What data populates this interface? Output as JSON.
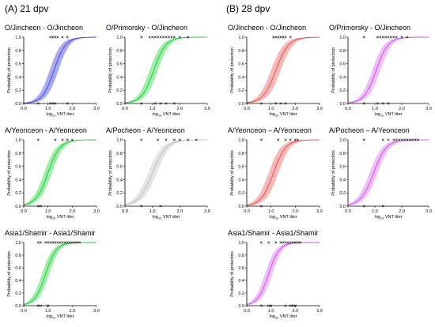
{
  "panels": {
    "left_label": "(A) 21 dpv",
    "right_label": "(B) 28 dpv"
  },
  "axis_text": {
    "ylabel": "Probability of protection",
    "xlabel_prefix": "log",
    "xlabel_sub": "10",
    "xlabel_suffix": " VNT titer"
  },
  "chart_data": [
    {
      "group": "(A) 21 dpv",
      "type": "line",
      "title": "O/Jincheon - O/Jincheon",
      "color": "#3b3bdc",
      "band_color": "#8c8cf0",
      "xlim": [
        0,
        3
      ],
      "ylim": [
        0,
        1
      ],
      "xticks": [
        "0.0",
        "1.0",
        "2.0",
        "3.0"
      ],
      "yticks": [
        "0.0",
        "0.2",
        "0.4",
        "0.6",
        "0.8",
        "1.0"
      ],
      "fit": {
        "ec50": 1.25,
        "slope": 4.2,
        "band": 0.18
      },
      "points_top": [
        1.1,
        1.2,
        1.3,
        1.4,
        1.6,
        1.8
      ],
      "points_bottom": [
        0.6,
        1.1,
        1.2,
        1.3,
        1.8
      ]
    },
    {
      "group": "(A) 21 dpv",
      "type": "line",
      "title": "O/Primorsky - O/Jincheon",
      "color": "#10c830",
      "band_color": "#7ee88e",
      "xlim": [
        0,
        3
      ],
      "ylim": [
        0,
        1
      ],
      "xticks": [
        "0.0",
        "1.0",
        "2.0",
        "3.0"
      ],
      "yticks": [
        "0.0",
        "0.2",
        "0.4",
        "0.6",
        "0.8",
        "1.0"
      ],
      "fit": {
        "ec50": 1.05,
        "slope": 4.5,
        "band": 0.15
      },
      "points_top": [
        0.6,
        0.9,
        1.0,
        1.1,
        1.2,
        1.3,
        1.4,
        1.5,
        1.6,
        1.7,
        1.8,
        2.0,
        2.3
      ],
      "points_bottom": [
        0.6,
        1.1,
        1.3,
        1.5,
        1.8
      ]
    },
    {
      "group": "(A) 21 dpv",
      "type": "line",
      "title": "A/Yeonceon - A/Yeonceon",
      "color": "#10c830",
      "band_color": "#7ee88e",
      "xlim": [
        0,
        3
      ],
      "ylim": [
        0,
        1
      ],
      "xticks": [
        "0.0",
        "1.0",
        "2.0",
        "3.0"
      ],
      "yticks": [
        "0.0",
        "0.2",
        "0.4",
        "0.6",
        "0.8",
        "1.0"
      ],
      "fit": {
        "ec50": 1.0,
        "slope": 4.0,
        "band": 0.16
      },
      "points_top": [
        0.6,
        1.3,
        1.6,
        1.8,
        2.0
      ],
      "points_bottom": [
        0.6,
        0.7
      ]
    },
    {
      "group": "(A) 21 dpv",
      "type": "line",
      "title": "A/Pocheon - A/Yeonceon",
      "color": "#b8b8b8",
      "band_color": "#dcdcdc",
      "xlim": [
        0,
        3
      ],
      "ylim": [
        0,
        1
      ],
      "xticks": [
        "0.0",
        "1.0",
        "2.0",
        "3.0"
      ],
      "yticks": [
        "0.0",
        "0.2",
        "0.4",
        "0.6",
        "0.8",
        "1.0"
      ],
      "fit": {
        "ec50": 1.0,
        "slope": 4.0,
        "band": 0.16
      },
      "points_top": [
        0.6,
        1.2,
        1.5,
        1.8,
        2.0,
        2.3,
        2.6
      ],
      "points_bottom": [
        0.6,
        1.3
      ]
    },
    {
      "group": "(A) 21 dpv",
      "type": "line",
      "title": "Asia1/Shamir - Asia1/Shamir",
      "color": "#10c830",
      "band_color": "#7ee88e",
      "xlim": [
        0,
        3
      ],
      "ylim": [
        0,
        1
      ],
      "xticks": [
        "0.0",
        "1.0",
        "2.0",
        "3.0"
      ],
      "yticks": [
        "0.0",
        "0.2",
        "0.4",
        "0.6",
        "0.8",
        "1.0"
      ],
      "fit": {
        "ec50": 0.9,
        "slope": 4.5,
        "band": 0.15
      },
      "points_top": [
        0.6,
        0.7,
        0.9,
        1.0,
        1.1,
        1.2,
        1.3,
        1.4,
        1.5,
        1.6,
        1.7,
        1.8,
        1.9,
        2.0,
        2.1,
        2.2,
        2.3
      ],
      "points_bottom": [
        0.6,
        0.7,
        1.0
      ]
    },
    {
      "group": "(B) 28 dpv",
      "type": "line",
      "title": "O/Jincheon - O/Jincheon",
      "color": "#e04646",
      "band_color": "#f4a0a0",
      "xlim": [
        0,
        3
      ],
      "ylim": [
        0,
        1
      ],
      "xticks": [
        "0.0",
        "1.0",
        "2.0",
        "3.0"
      ],
      "yticks": [
        "0.0",
        "0.2",
        "0.4",
        "0.6",
        "0.8",
        "1.0"
      ],
      "fit": {
        "ec50": 1.2,
        "slope": 3.8,
        "band": 0.2
      },
      "points_top": [
        1.1,
        1.2,
        1.3,
        1.4,
        1.5,
        1.6,
        1.8
      ],
      "points_bottom": [
        0.6,
        1.2,
        1.4,
        1.6
      ]
    },
    {
      "group": "(B) 28 dpv",
      "type": "line",
      "title": "O/Primorsky - O/Jincheon",
      "color": "#cc44ee",
      "band_color": "#eaa8f8",
      "xlim": [
        0,
        3
      ],
      "ylim": [
        0,
        1
      ],
      "xticks": [
        "0.0",
        "1.0",
        "2.0",
        "3.0"
      ],
      "yticks": [
        "0.0",
        "0.2",
        "0.4",
        "0.6",
        "0.8",
        "1.0"
      ],
      "fit": {
        "ec50": 1.05,
        "slope": 4.5,
        "band": 0.15
      },
      "points_top": [
        0.6,
        1.1,
        1.2,
        1.3,
        1.4,
        1.5,
        1.6,
        1.7,
        1.8,
        2.0,
        2.2
      ],
      "points_bottom": [
        0.6,
        1.1,
        1.3,
        1.5
      ]
    },
    {
      "group": "(B) 28 dpv",
      "type": "line",
      "title": "A/Yeonceon – A/Yeonceon",
      "color": "#e04646",
      "band_color": "#f4a0a0",
      "xlim": [
        0,
        3
      ],
      "ylim": [
        0,
        1
      ],
      "xticks": [
        "0.0",
        "1.0",
        "2.0",
        "3.0"
      ],
      "yticks": [
        "0.0",
        "0.2",
        "0.4",
        "0.6",
        "0.8",
        "1.0"
      ],
      "fit": {
        "ec50": 1.1,
        "slope": 4.0,
        "band": 0.2
      },
      "points_top": [
        0.6,
        1.3,
        1.6,
        1.8,
        2.0,
        2.1
      ],
      "points_bottom": [
        0.6
      ]
    },
    {
      "group": "(B) 28 dpv",
      "type": "line",
      "title": "A/Pocheon – A/Yeonceon",
      "color": "#cc44ee",
      "band_color": "#eaa8f8",
      "xlim": [
        0,
        3
      ],
      "ylim": [
        0,
        1
      ],
      "xticks": [
        "0.0",
        "1.0",
        "2.0",
        "3.0"
      ],
      "yticks": [
        "0.0",
        "0.2",
        "0.4",
        "0.6",
        "0.8",
        "1.0"
      ],
      "fit": {
        "ec50": 0.95,
        "slope": 4.2,
        "band": 0.15
      },
      "points_top": [
        0.6,
        1.3,
        1.5,
        1.7,
        1.8,
        1.9,
        2.0,
        2.1,
        2.2,
        2.3,
        2.4,
        2.5,
        2.6
      ],
      "points_bottom": [
        0.6,
        1.3
      ]
    },
    {
      "group": "(B) 28 dpv",
      "type": "line",
      "title": "Asia1/Shamir - Asia1/Shamir",
      "color": "#cc44ee",
      "band_color": "#eaa8f8",
      "xlim": [
        0,
        3
      ],
      "ylim": [
        0,
        1
      ],
      "xticks": [
        "0.0",
        "1.0",
        "2.0",
        "3.0"
      ],
      "yticks": [
        "0.0",
        "0.2",
        "0.4",
        "0.6",
        "0.8",
        "1.0"
      ],
      "fit": {
        "ec50": 0.9,
        "slope": 4.5,
        "band": 0.15
      },
      "points_top": [
        0.6,
        0.9,
        1.2,
        1.4,
        1.5,
        1.6,
        1.7,
        1.8,
        1.9,
        2.0,
        2.1,
        2.2
      ],
      "points_bottom": [
        0.6,
        0.9,
        1.0,
        1.6,
        1.8,
        1.9,
        2.0
      ]
    }
  ]
}
